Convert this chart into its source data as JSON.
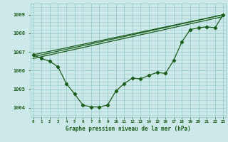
{
  "background_color": "#cce8e8",
  "grid_color": "#99cccc",
  "line_color": "#1a5c1a",
  "marker_color": "#1a5c1a",
  "title": "Graphe pression niveau de la mer (hPa)",
  "ylim": [
    1003.5,
    1009.6
  ],
  "yticks": [
    1004,
    1005,
    1006,
    1007,
    1008,
    1009
  ],
  "series1_x": [
    0,
    1,
    2,
    3,
    4,
    5,
    6,
    7,
    8,
    9,
    10,
    11,
    12,
    13,
    14,
    15,
    16,
    17,
    18,
    19,
    20,
    21,
    22,
    23
  ],
  "series1_y": [
    1006.85,
    1006.65,
    1006.5,
    1006.2,
    1005.3,
    1004.75,
    1004.15,
    1004.05,
    1004.05,
    1004.15,
    1004.9,
    1005.3,
    1005.6,
    1005.55,
    1005.75,
    1005.9,
    1005.85,
    1006.55,
    1007.55,
    1008.2,
    1008.3,
    1008.35,
    1008.3,
    1009.0
  ],
  "series2_x": [
    0,
    23
  ],
  "series2_y": [
    1006.85,
    1009.0
  ],
  "series3_x": [
    0,
    23
  ],
  "series3_y": [
    1006.75,
    1009.0
  ],
  "series4_x": [
    0,
    23
  ],
  "series4_y": [
    1006.65,
    1008.9
  ],
  "xlim": [
    -0.3,
    23.3
  ]
}
